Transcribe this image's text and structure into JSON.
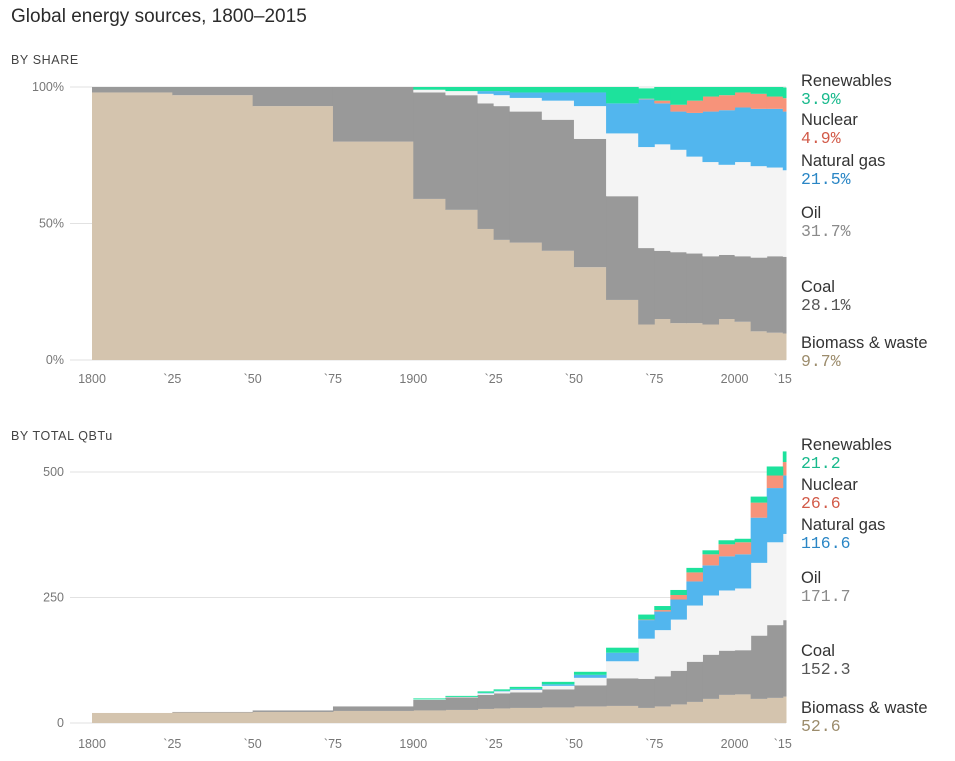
{
  "title": "Global energy sources, 1800–2015",
  "colors": {
    "biomass": "#d4c4ae",
    "coal": "#999999",
    "oil": "#f4f4f4",
    "natural_gas": "#52b6ee",
    "nuclear": "#f7937a",
    "renewables": "#1de29c"
  },
  "chart_data": [
    {
      "type": "area",
      "subtitle": "BY SHARE",
      "stacked": true,
      "step": true,
      "ylim": [
        0,
        100
      ],
      "yticks": [
        0,
        50,
        100
      ],
      "ytick_labels": [
        "0%",
        "50%",
        "100%"
      ],
      "xlim": [
        1800,
        2016
      ],
      "xticks": [
        1800,
        1825,
        1850,
        1875,
        1900,
        1925,
        1950,
        1975,
        2000,
        2015
      ],
      "xtick_labels": [
        "1800",
        "`25",
        "`50",
        "`75",
        "1900",
        "`25",
        "`50",
        "`75",
        "2000",
        "`15"
      ],
      "grid": true,
      "x": [
        1800,
        1825,
        1850,
        1875,
        1900,
        1910,
        1920,
        1925,
        1930,
        1940,
        1950,
        1960,
        1970,
        1975,
        1980,
        1985,
        1990,
        1995,
        2000,
        2005,
        2010,
        2015
      ],
      "series": [
        {
          "name": "Biomass & waste",
          "key": "biomass",
          "values": [
            98,
            97,
            93,
            80,
            59,
            55,
            48,
            44,
            43,
            40,
            34,
            22,
            13,
            15,
            13.5,
            13.5,
            13,
            15,
            14,
            10.5,
            10,
            9.7
          ]
        },
        {
          "name": "Coal",
          "key": "coal",
          "values": [
            2,
            3,
            7,
            20,
            39,
            42,
            46,
            49,
            48,
            48,
            47,
            38,
            28,
            25,
            26,
            25.5,
            25,
            23.5,
            24,
            27,
            28,
            28.1
          ]
        },
        {
          "name": "Oil",
          "key": "oil",
          "values": [
            0,
            0,
            0,
            0,
            1,
            1.5,
            3.5,
            4,
            5,
            7,
            12,
            23,
            37,
            39,
            37.5,
            35.5,
            34.5,
            33,
            34.5,
            33.5,
            32.5,
            31.7
          ]
        },
        {
          "name": "Natural gas",
          "key": "natural_gas",
          "values": [
            0,
            0,
            0,
            0,
            0,
            0,
            1,
            1.5,
            2,
            3,
            5,
            11,
            17.5,
            15,
            14,
            16,
            18.5,
            20,
            20,
            21,
            21.5,
            21.5
          ]
        },
        {
          "name": "Nuclear",
          "key": "nuclear",
          "values": [
            0,
            0,
            0,
            0,
            0,
            0,
            0,
            0,
            0,
            0,
            0,
            0,
            0.2,
            1,
            2.5,
            4.5,
            5.5,
            5.5,
            5.5,
            5.5,
            4.5,
            4.9
          ]
        },
        {
          "name": "Renewables",
          "key": "renewables",
          "values": [
            0,
            0,
            0,
            0,
            1,
            1.5,
            1.5,
            1.5,
            2,
            2,
            2,
            6,
            3.8,
            5,
            6.5,
            5,
            3.5,
            3,
            2,
            2.5,
            3.5,
            3.9
          ]
        }
      ],
      "legend": [
        {
          "key": "renewables",
          "name": "Renewables",
          "value": "3.9%",
          "color": "#18b98c"
        },
        {
          "key": "nuclear",
          "name": "Nuclear",
          "value": "4.9%",
          "color": "#d25a48"
        },
        {
          "key": "natural_gas",
          "name": "Natural gas",
          "value": "21.5%",
          "color": "#2a86c5"
        },
        {
          "key": "oil",
          "name": "Oil",
          "value": "31.7%",
          "color": "#8a8a8a"
        },
        {
          "key": "coal",
          "name": "Coal",
          "value": "28.1%",
          "color": "#555555"
        },
        {
          "key": "biomass",
          "name": "Biomass & waste",
          "value": "9.7%",
          "color": "#9c8c6c"
        }
      ]
    },
    {
      "type": "area",
      "subtitle": "BY TOTAL QBTu",
      "stacked": true,
      "step": true,
      "ylim": [
        0,
        500
      ],
      "yticks": [
        0,
        250,
        500
      ],
      "ytick_labels": [
        "0",
        "250",
        "500"
      ],
      "xlim": [
        1800,
        2016
      ],
      "xticks": [
        1800,
        1825,
        1850,
        1875,
        1900,
        1925,
        1950,
        1975,
        2000,
        2015
      ],
      "xtick_labels": [
        "1800",
        "`25",
        "`50",
        "`75",
        "1900",
        "`25",
        "`50",
        "`75",
        "2000",
        "`15"
      ],
      "grid": true,
      "x": [
        1800,
        1825,
        1850,
        1875,
        1900,
        1910,
        1920,
        1925,
        1930,
        1940,
        1950,
        1960,
        1970,
        1975,
        1980,
        1985,
        1990,
        1995,
        2000,
        2005,
        2010,
        2015
      ],
      "series": [
        {
          "name": "Biomass & waste",
          "key": "biomass",
          "values": [
            20,
            21,
            22,
            24,
            25,
            26,
            28,
            29,
            30,
            31,
            33,
            34,
            30,
            33,
            37,
            42,
            48,
            56,
            57,
            48,
            50,
            52.6
          ]
        },
        {
          "name": "Coal",
          "key": "coal",
          "values": [
            0,
            1,
            3,
            9,
            21,
            25,
            28,
            30,
            31,
            36,
            42,
            55,
            58,
            60,
            67,
            80,
            88,
            88,
            88,
            126,
            145,
            152.3
          ]
        },
        {
          "name": "Oil",
          "key": "oil",
          "values": [
            0,
            0,
            0,
            0,
            1,
            1,
            3,
            4,
            5,
            7,
            15,
            34,
            80,
            92,
            102,
            112,
            118,
            120,
            123,
            145,
            165,
            171.7
          ]
        },
        {
          "name": "Natural gas",
          "key": "natural_gas",
          "values": [
            0,
            0,
            0,
            0,
            0,
            0,
            1,
            1,
            2,
            3,
            6,
            17,
            37,
            37,
            40,
            48,
            60,
            68,
            68,
            90,
            108,
            116.6
          ]
        },
        {
          "name": "Nuclear",
          "key": "nuclear",
          "values": [
            0,
            0,
            0,
            0,
            0,
            0,
            0,
            0,
            0,
            0,
            0,
            0,
            1,
            3,
            9,
            18,
            22,
            24,
            24,
            30,
            25,
            26.6
          ]
        },
        {
          "name": "Renewables",
          "key": "renewables",
          "values": [
            0,
            0,
            0,
            0,
            2,
            2,
            3,
            3,
            4,
            5,
            6,
            10,
            10,
            8,
            10,
            9,
            8,
            8,
            7,
            12,
            18,
            21.2
          ]
        }
      ],
      "legend": [
        {
          "key": "renewables",
          "name": "Renewables",
          "value": "21.2",
          "color": "#18b98c"
        },
        {
          "key": "nuclear",
          "name": "Nuclear",
          "value": "26.6",
          "color": "#d25a48"
        },
        {
          "key": "natural_gas",
          "name": "Natural gas",
          "value": "116.6",
          "color": "#2a86c5"
        },
        {
          "key": "oil",
          "name": "Oil",
          "value": "171.7",
          "color": "#8a8a8a"
        },
        {
          "key": "coal",
          "name": "Coal",
          "value": "152.3",
          "color": "#555555"
        },
        {
          "key": "biomass",
          "name": "Biomass & waste",
          "value": "52.6",
          "color": "#9c8c6c"
        }
      ]
    }
  ]
}
